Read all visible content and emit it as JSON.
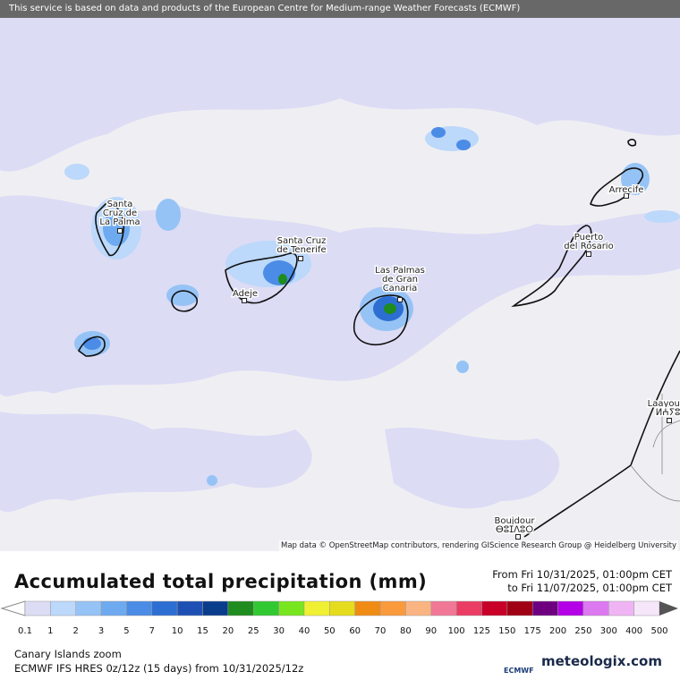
{
  "banner": "This service is based on data and products of the European Centre for Medium-range Weather Forecasts (ECMWF)",
  "attribution": "Map data © OpenStreetMap contributors, rendering GIScience Research Group @ Heidelberg University",
  "places": [
    {
      "lines": [
        "Santa",
        "Cruz de",
        "La Palma"
      ]
    },
    {
      "lines": [
        "Santa Cruz",
        "de Tenerife"
      ]
    },
    {
      "lines": [
        "Adeje"
      ]
    },
    {
      "lines": [
        "Las Palmas",
        "de Gran",
        "Canaria"
      ]
    },
    {
      "lines": [
        "Arrecife"
      ]
    },
    {
      "lines": [
        "Puerto",
        "del Rosario"
      ]
    },
    {
      "lines": [
        "Laayoune",
        "ⵍⵄⵢⵓⵏ"
      ]
    },
    {
      "lines": [
        "Boujdour",
        "ⴱⵓⵊⴷⵓⵔ"
      ]
    }
  ],
  "legend": {
    "title": "Accumulated total precipitation (mm)",
    "from": "From Fri 10/31/2025, 01:00pm CET",
    "to": "to Fri 11/07/2025, 01:00pm CET",
    "scale": [
      0.1,
      1,
      2,
      3,
      5,
      7,
      10,
      15,
      20,
      25,
      30,
      40,
      50,
      60,
      70,
      80,
      90,
      100,
      125,
      150,
      175,
      200,
      250,
      300,
      400,
      500
    ],
    "colors": [
      "#dcdcf5",
      "#bcd8fa",
      "#96c3f5",
      "#6eaaf0",
      "#4b8ce6",
      "#2d6ed2",
      "#1e50b4",
      "#0a3c8c",
      "#1e8c1e",
      "#32c832",
      "#78e61e",
      "#f0f032",
      "#e6dc1e",
      "#f08c14",
      "#fa9a3c",
      "#fab482",
      "#f07896",
      "#eb3c64",
      "#c80028",
      "#a00014",
      "#6e0080",
      "#b400e6",
      "#dc78f0",
      "#f0b4f5",
      "#f5e6fa"
    ]
  },
  "footer": {
    "region": "Canary Islands zoom",
    "model": "ECMWF IFS HRES 0z/12z (15 days) from 10/31/2025/12z",
    "ecmwf": "ECMWF",
    "brand": "meteologix.com"
  }
}
